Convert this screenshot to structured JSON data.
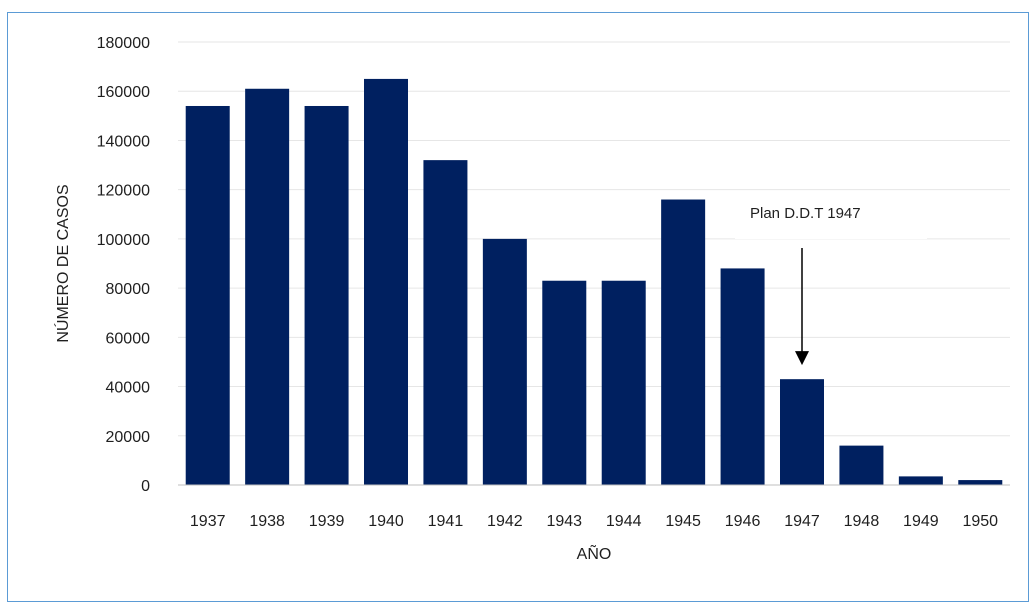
{
  "chart_data": {
    "type": "bar",
    "categories": [
      "1937",
      "1938",
      "1939",
      "1940",
      "1941",
      "1942",
      "1943",
      "1944",
      "1945",
      "1946",
      "1947",
      "1948",
      "1949",
      "1950"
    ],
    "values": [
      154000,
      161000,
      154000,
      165000,
      132000,
      100000,
      83000,
      83000,
      116000,
      88000,
      43000,
      16000,
      3500,
      2000
    ],
    "xlabel": "AÑO",
    "ylabel": "NÚMERO DE CASOS",
    "ylim": [
      0,
      180000
    ],
    "yticks": [
      0,
      20000,
      40000,
      60000,
      80000,
      100000,
      120000,
      140000,
      160000,
      180000
    ],
    "bar_color": "#002060",
    "grid": true,
    "legend": "none",
    "annotation": {
      "text": "Plan D.D.T 1947",
      "target": "1947",
      "arrow": "down"
    }
  }
}
